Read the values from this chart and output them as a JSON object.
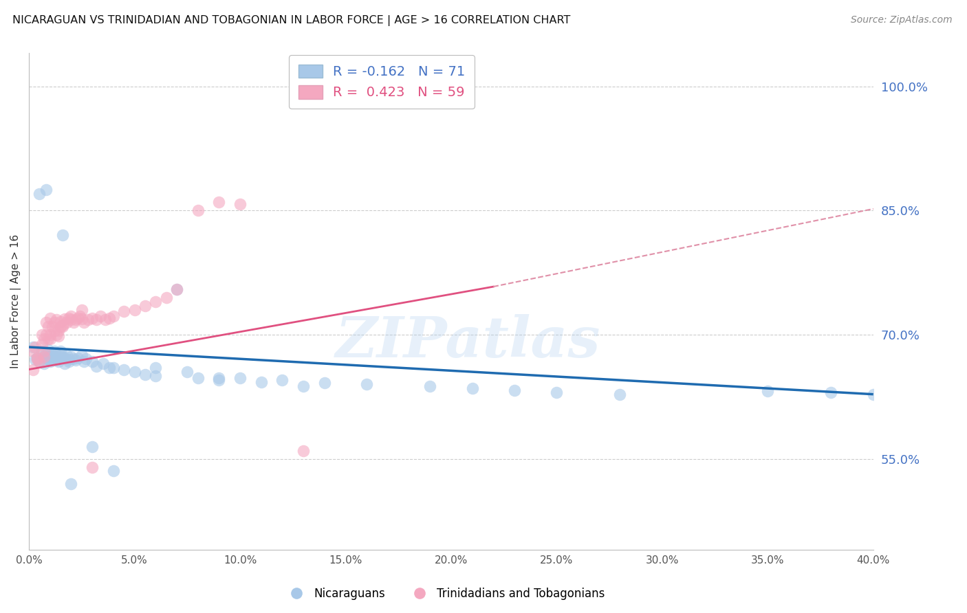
{
  "title": "NICARAGUAN VS TRINIDADIAN AND TOBAGONIAN IN LABOR FORCE | AGE > 16 CORRELATION CHART",
  "source": "Source: ZipAtlas.com",
  "ylabel": "In Labor Force | Age > 16",
  "xlim": [
    0.0,
    0.4
  ],
  "ylim": [
    0.44,
    1.04
  ],
  "yticks": [
    0.55,
    0.7,
    0.85,
    1.0
  ],
  "xticks": [
    0.0,
    0.05,
    0.1,
    0.15,
    0.2,
    0.25,
    0.3,
    0.35,
    0.4
  ],
  "legend_blue_r": "-0.162",
  "legend_blue_n": "71",
  "legend_pink_r": "0.423",
  "legend_pink_n": "59",
  "blue_color": "#A8C8E8",
  "pink_color": "#F4A8C0",
  "trend_blue_color": "#1F6BB0",
  "trend_pink_solid_color": "#E05080",
  "trend_pink_dash_color": "#E090A8",
  "watermark_text": "ZIPatlas",
  "blue_trend_x0": 0.0,
  "blue_trend_y0": 0.685,
  "blue_trend_x1": 0.4,
  "blue_trend_y1": 0.628,
  "pink_trend_x0": 0.0,
  "pink_trend_y0": 0.658,
  "pink_trend_xmid": 0.22,
  "pink_trend_ymid": 0.758,
  "pink_trend_x1": 0.4,
  "pink_trend_y1": 0.852,
  "blue_x": [
    0.002,
    0.003,
    0.004,
    0.005,
    0.006,
    0.007,
    0.007,
    0.008,
    0.008,
    0.009,
    0.009,
    0.01,
    0.01,
    0.011,
    0.011,
    0.012,
    0.012,
    0.013,
    0.013,
    0.014,
    0.014,
    0.015,
    0.015,
    0.016,
    0.017,
    0.017,
    0.018,
    0.019,
    0.019,
    0.02,
    0.021,
    0.022,
    0.023,
    0.025,
    0.026,
    0.027,
    0.03,
    0.032,
    0.035,
    0.038,
    0.04,
    0.045,
    0.05,
    0.055,
    0.06,
    0.07,
    0.08,
    0.09,
    0.1,
    0.12,
    0.14,
    0.16,
    0.19,
    0.21,
    0.23,
    0.25,
    0.28,
    0.06,
    0.075,
    0.09,
    0.11,
    0.13,
    0.35,
    0.38,
    0.4,
    0.005,
    0.008,
    0.016,
    0.02,
    0.03,
    0.04
  ],
  "blue_y": [
    0.685,
    0.67,
    0.672,
    0.668,
    0.68,
    0.673,
    0.665,
    0.671,
    0.678,
    0.67,
    0.682,
    0.668,
    0.674,
    0.676,
    0.671,
    0.673,
    0.68,
    0.669,
    0.676,
    0.671,
    0.668,
    0.674,
    0.68,
    0.673,
    0.665,
    0.672,
    0.675,
    0.67,
    0.668,
    0.673,
    0.671,
    0.669,
    0.672,
    0.675,
    0.668,
    0.671,
    0.668,
    0.662,
    0.665,
    0.66,
    0.66,
    0.658,
    0.655,
    0.652,
    0.65,
    0.755,
    0.648,
    0.645,
    0.648,
    0.645,
    0.642,
    0.64,
    0.638,
    0.635,
    0.633,
    0.63,
    0.628,
    0.66,
    0.655,
    0.648,
    0.643,
    0.638,
    0.632,
    0.63,
    0.628,
    0.87,
    0.875,
    0.82,
    0.52,
    0.565,
    0.536
  ],
  "pink_x": [
    0.002,
    0.003,
    0.004,
    0.005,
    0.006,
    0.006,
    0.007,
    0.007,
    0.008,
    0.008,
    0.009,
    0.009,
    0.01,
    0.01,
    0.011,
    0.012,
    0.012,
    0.013,
    0.014,
    0.014,
    0.015,
    0.015,
    0.016,
    0.017,
    0.018,
    0.019,
    0.02,
    0.021,
    0.022,
    0.023,
    0.024,
    0.025,
    0.026,
    0.028,
    0.03,
    0.032,
    0.034,
    0.036,
    0.038,
    0.04,
    0.045,
    0.05,
    0.055,
    0.06,
    0.065,
    0.07,
    0.08,
    0.09,
    0.1,
    0.13,
    0.002,
    0.004,
    0.007,
    0.01,
    0.013,
    0.016,
    0.02,
    0.025,
    0.03
  ],
  "pink_y": [
    0.68,
    0.685,
    0.672,
    0.668,
    0.7,
    0.688,
    0.695,
    0.673,
    0.715,
    0.7,
    0.695,
    0.71,
    0.72,
    0.7,
    0.71,
    0.715,
    0.705,
    0.718,
    0.705,
    0.698,
    0.71,
    0.716,
    0.712,
    0.719,
    0.715,
    0.72,
    0.718,
    0.715,
    0.718,
    0.72,
    0.722,
    0.719,
    0.715,
    0.718,
    0.72,
    0.718,
    0.722,
    0.718,
    0.72,
    0.722,
    0.728,
    0.73,
    0.735,
    0.74,
    0.745,
    0.755,
    0.85,
    0.86,
    0.858,
    0.56,
    0.658,
    0.67,
    0.68,
    0.695,
    0.7,
    0.71,
    0.722,
    0.73,
    0.54
  ]
}
